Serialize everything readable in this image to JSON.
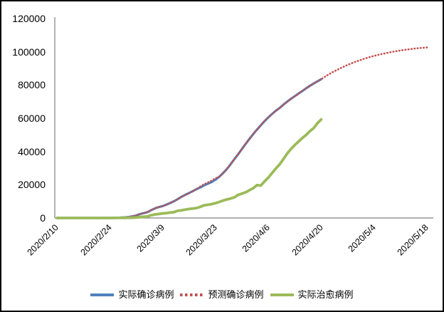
{
  "window": {
    "background_color": "#ffffff",
    "border_color": "#000000"
  },
  "chart_data": {
    "type": "line",
    "title": "",
    "xlabel": "",
    "ylabel": "",
    "ylim": [
      0,
      120000
    ],
    "grid": false,
    "legend_position": "bottom",
    "axis_color": "#808080",
    "text_color": "#000000",
    "y_ticks": [
      0,
      20000,
      40000,
      60000,
      80000,
      100000,
      120000
    ],
    "y_tick_labels": [
      "0",
      "20000",
      "40000",
      "60000",
      "80000",
      "100000",
      "120000"
    ],
    "x_tick_labels": [
      "2020/2/10",
      "2020/2/24",
      "2020/3/9",
      "2020/3/23",
      "2020/4/6",
      "2020/4/20",
      "2020/5/4",
      "2020/5/18"
    ],
    "x_tick_indices": [
      0,
      14,
      28,
      42,
      56,
      70,
      84,
      98
    ],
    "x": [
      "2020/2/10",
      "2020/2/11",
      "2020/2/12",
      "2020/2/13",
      "2020/2/14",
      "2020/2/15",
      "2020/2/16",
      "2020/2/17",
      "2020/2/18",
      "2020/2/19",
      "2020/2/20",
      "2020/2/21",
      "2020/2/22",
      "2020/2/23",
      "2020/2/24",
      "2020/2/25",
      "2020/2/26",
      "2020/2/27",
      "2020/2/28",
      "2020/2/29",
      "2020/3/1",
      "2020/3/2",
      "2020/3/3",
      "2020/3/4",
      "2020/3/5",
      "2020/3/6",
      "2020/3/7",
      "2020/3/8",
      "2020/3/9",
      "2020/3/10",
      "2020/3/11",
      "2020/3/12",
      "2020/3/13",
      "2020/3/14",
      "2020/3/15",
      "2020/3/16",
      "2020/3/17",
      "2020/3/18",
      "2020/3/19",
      "2020/3/20",
      "2020/3/21",
      "2020/3/22",
      "2020/3/23",
      "2020/3/24",
      "2020/3/25",
      "2020/3/26",
      "2020/3/27",
      "2020/3/28",
      "2020/3/29",
      "2020/3/30",
      "2020/3/31",
      "2020/4/1",
      "2020/4/2",
      "2020/4/3",
      "2020/4/4",
      "2020/4/5",
      "2020/4/6",
      "2020/4/7",
      "2020/4/8",
      "2020/4/9",
      "2020/4/10",
      "2020/4/11",
      "2020/4/12",
      "2020/4/13",
      "2020/4/14",
      "2020/4/15",
      "2020/4/16",
      "2020/4/17",
      "2020/4/18",
      "2020/4/19",
      "2020/4/20",
      "2020/4/21",
      "2020/4/22",
      "2020/4/23",
      "2020/4/24",
      "2020/4/25",
      "2020/4/26",
      "2020/4/27",
      "2020/4/28",
      "2020/4/29",
      "2020/4/30",
      "2020/5/1",
      "2020/5/2",
      "2020/5/3",
      "2020/5/4",
      "2020/5/5",
      "2020/5/6",
      "2020/5/7",
      "2020/5/8",
      "2020/5/9",
      "2020/5/10",
      "2020/5/11",
      "2020/5/12",
      "2020/5/13",
      "2020/5/14",
      "2020/5/15",
      "2020/5/16",
      "2020/5/17",
      "2020/5/18"
    ],
    "series": [
      {
        "name": "实际确诊病例",
        "color": "#4F81BD",
        "line_style": "solid",
        "stroke_width": 3.2,
        "values": [
          0,
          0,
          0,
          0,
          0,
          0,
          0,
          0,
          0,
          2,
          5,
          18,
          28,
          43,
          61,
          95,
          139,
          245,
          388,
          593,
          978,
          1501,
          2336,
          2922,
          3513,
          4747,
          5823,
          6566,
          7161,
          8042,
          9000,
          10075,
          11364,
          12729,
          13938,
          14991,
          16169,
          17361,
          18407,
          19644,
          20610,
          21638,
          23049,
          24811,
          27017,
          29406,
          32332,
          35408,
          38309,
          41495,
          44605,
          47593,
          50468,
          53183,
          55743,
          58226,
          60500,
          62589,
          64586,
          66220,
          68192,
          70029,
          71686,
          73303,
          74877,
          76389,
          77995,
          79494,
          80868,
          82211,
          83505
        ]
      },
      {
        "name": "预测确诊病例",
        "color": "#C0504D",
        "line_style": "dotted",
        "stroke_width": 2.6,
        "values": [
          0,
          0,
          0,
          0,
          0,
          0,
          0,
          0,
          0,
          2,
          5,
          18,
          28,
          43,
          61,
          95,
          139,
          245,
          388,
          593,
          978,
          1501,
          2336,
          2922,
          3513,
          4747,
          5823,
          6566,
          7161,
          8042,
          9000,
          10075,
          11364,
          12729,
          13938,
          14991,
          16169,
          17361,
          19000,
          20300,
          21400,
          22500,
          23900,
          24811,
          27017,
          29406,
          32332,
          35408,
          38309,
          41495,
          44605,
          47593,
          50468,
          53183,
          55743,
          58226,
          60500,
          62589,
          64586,
          66220,
          68192,
          70029,
          71686,
          73303,
          74877,
          76389,
          77995,
          79494,
          80868,
          82211,
          83505,
          85000,
          86400,
          87700,
          88900,
          90000,
          91100,
          92100,
          93000,
          93900,
          94700,
          95500,
          96200,
          96900,
          97500,
          98100,
          98600,
          99100,
          99600,
          100000,
          100400,
          100800,
          101100,
          101400,
          101700,
          102000,
          102200,
          102400,
          102600
        ]
      },
      {
        "name": "实际治愈病例",
        "color": "#9BBB59",
        "line_style": "solid",
        "stroke_width": 3.8,
        "values": [
          0,
          0,
          0,
          0,
          0,
          0,
          0,
          0,
          0,
          0,
          0,
          0,
          0,
          0,
          0,
          0,
          49,
          49,
          73,
          123,
          175,
          291,
          552,
          739,
          913,
          1669,
          2134,
          2394,
          2731,
          2959,
          3276,
          3529,
          4339,
          4590,
          4996,
          5389,
          5710,
          5979,
          6745,
          7635,
          7931,
          8376,
          8913,
          9625,
          10457,
          11133,
          11679,
          12391,
          13911,
          14656,
          15473,
          16711,
          17935,
          19736,
          19500,
          22011,
          24236,
          27039,
          29812,
          32309,
          35465,
          38809,
          41550,
          43894,
          45983,
          48129,
          49933,
          52229,
          54064,
          56987,
          59273
        ]
      }
    ]
  }
}
